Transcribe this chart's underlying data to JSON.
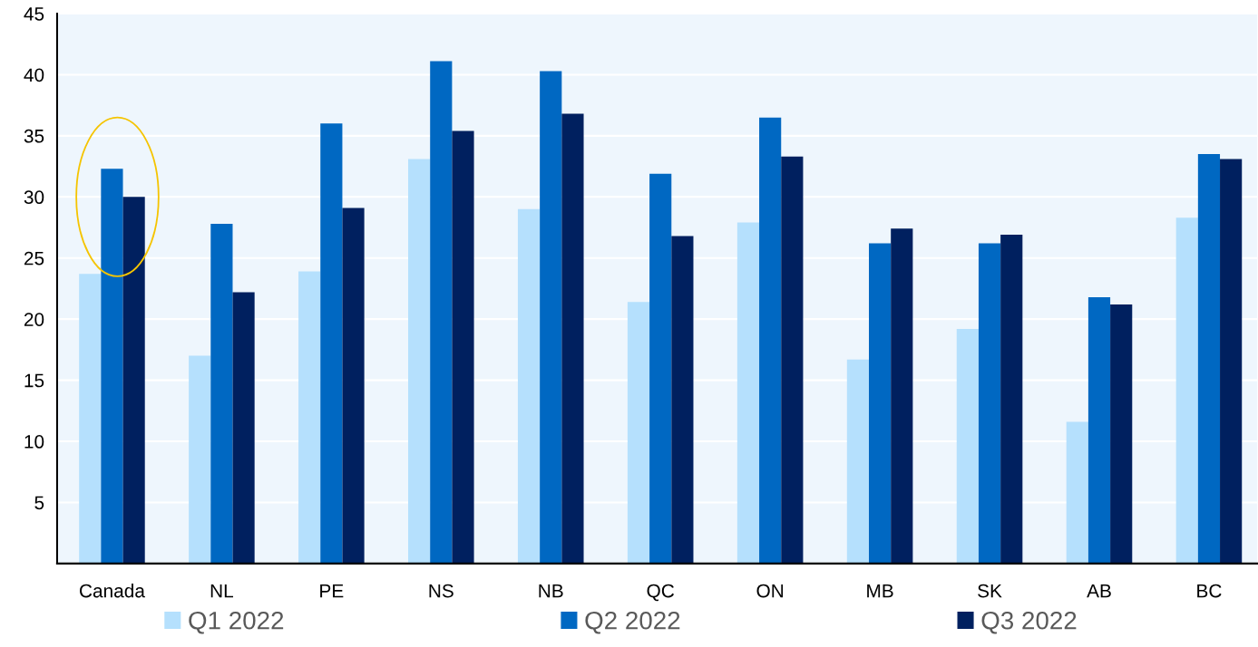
{
  "chart_data": {
    "type": "bar",
    "categories": [
      "Canada",
      "NL",
      "PE",
      "NS",
      "NB",
      "QC",
      "ON",
      "MB",
      "SK",
      "AB",
      "BC"
    ],
    "series": [
      {
        "name": "Q1 2022",
        "color": "#b5e0fd",
        "values": [
          23.7,
          17.0,
          23.9,
          33.1,
          29.0,
          21.4,
          27.9,
          16.7,
          19.2,
          11.6,
          28.3
        ]
      },
      {
        "name": "Q2 2022",
        "color": "#0068c2",
        "values": [
          32.3,
          27.8,
          36.0,
          41.1,
          40.3,
          31.9,
          36.5,
          26.2,
          26.2,
          21.8,
          33.5
        ]
      },
      {
        "name": "Q3 2022",
        "color": "#00205f",
        "values": [
          30.0,
          22.2,
          29.1,
          35.4,
          36.8,
          26.8,
          33.3,
          27.4,
          26.9,
          21.2,
          33.1
        ]
      }
    ],
    "ylim": [
      0,
      45
    ],
    "yticks": [
      {
        "value": 0,
        "label": null
      },
      5,
      10,
      15,
      20,
      25,
      30,
      35,
      40,
      45
    ],
    "grid": "y",
    "legend": "bottom"
  }
}
